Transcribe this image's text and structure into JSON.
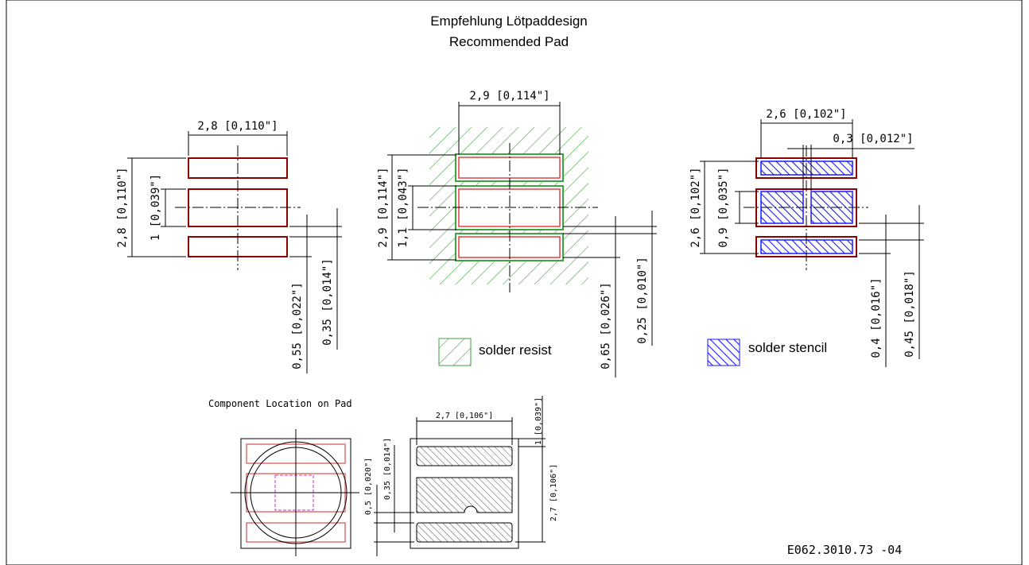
{
  "title": {
    "line1": "Empfehlung Lötpaddesign",
    "line2": "Recommended Pad"
  },
  "view_pads": {
    "width": "2,8 [0,110\"]",
    "height": "2,8 [0,110\"]",
    "middle_pad": "1 [0,039\"]",
    "gap": "0,35 [0,014\"]",
    "outer_pad": "0,55 [0,022\"]"
  },
  "view_resist": {
    "width": "2,9 [0,114\"]",
    "height": "2,9 [0,114\"]",
    "middle_pad": "1,1 [0,043\"]",
    "outer_pad": "0,65 [0,026\"]",
    "gap": "0,25 [0,010\"]"
  },
  "view_stencil": {
    "width": "2,6 [0,102\"]",
    "slot": "0,3 [0,012\"]",
    "height": "2,6 [0,102\"]",
    "middle_pad": "0,9 [0,035\"]",
    "outer_pad": "0,4 [0,016\"]",
    "gap": "0,45 [0,018\"]"
  },
  "legend": {
    "resist": "solder resist",
    "stencil": "solder stencil",
    "resist_color": "#3fa33f",
    "stencil_color": "#1a1aff",
    "pad_color": "#8b0000"
  },
  "component": {
    "caption": "Component Location on Pad",
    "width": "2,7 [0,106\"]",
    "top_gap": "1 [0,039\"]",
    "height": "2,7 [0,106\"]",
    "pad_left_a": "0,5 [0,020\"]",
    "pad_left_b": "0,35 [0,014\"]"
  },
  "doc_id": "E062.3010.73 -04"
}
